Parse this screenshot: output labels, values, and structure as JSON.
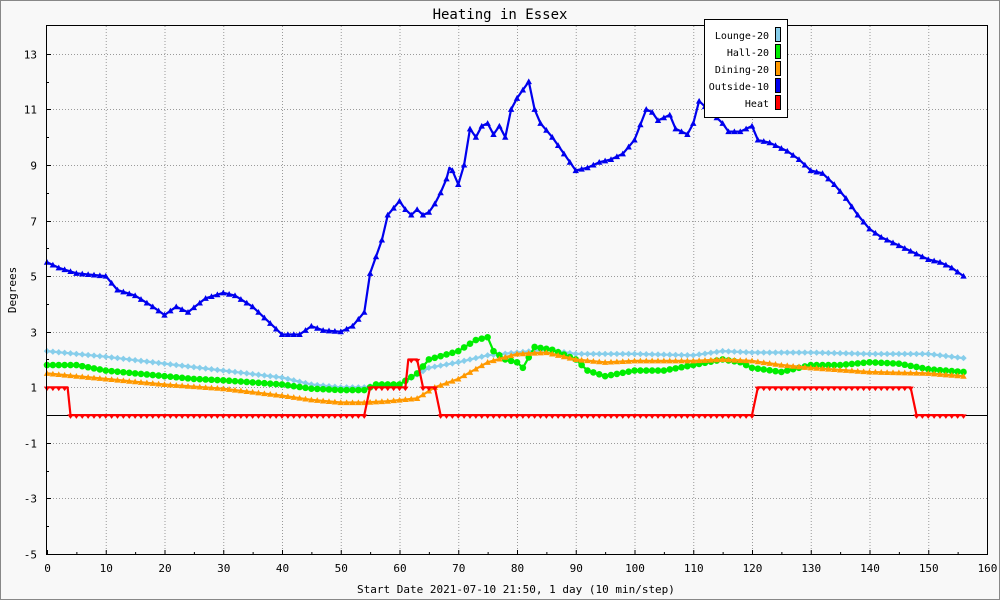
{
  "chart_data": {
    "type": "line",
    "title": "Heating in Essex",
    "xlabel": "Start Date 2021-07-10 21:50, 1 day (10 min/step)",
    "ylabel": "Degrees",
    "xlim": [
      0,
      160
    ],
    "ylim": [
      -5,
      14
    ],
    "x_ticks": [
      0,
      10,
      20,
      30,
      40,
      50,
      60,
      70,
      80,
      90,
      100,
      110,
      120,
      130,
      140,
      150,
      160
    ],
    "y_ticks": [
      -5,
      -3,
      -1,
      1,
      3,
      5,
      7,
      9,
      11,
      13
    ],
    "zero_line": 0,
    "grid": true,
    "legend_position": "top-right",
    "series": [
      {
        "name": "Lounge-20",
        "color": "#87ceeb",
        "marker": "diamond",
        "points": [
          [
            0,
            2.3
          ],
          [
            10,
            2.1
          ],
          [
            20,
            1.85
          ],
          [
            30,
            1.6
          ],
          [
            40,
            1.35
          ],
          [
            45,
            1.1
          ],
          [
            50,
            1.0
          ],
          [
            54,
            1.0
          ],
          [
            57,
            1.1
          ],
          [
            60,
            1.1
          ],
          [
            65,
            1.7
          ],
          [
            70,
            1.9
          ],
          [
            75,
            2.15
          ],
          [
            80,
            2.25
          ],
          [
            85,
            2.35
          ],
          [
            90,
            2.2
          ],
          [
            100,
            2.2
          ],
          [
            110,
            2.15
          ],
          [
            115,
            2.3
          ],
          [
            120,
            2.25
          ],
          [
            130,
            2.25
          ],
          [
            140,
            2.2
          ],
          [
            150,
            2.2
          ],
          [
            156,
            2.05
          ]
        ]
      },
      {
        "name": "Hall-20",
        "color": "#00ee00",
        "marker": "circle",
        "points": [
          [
            0,
            1.8
          ],
          [
            5,
            1.8
          ],
          [
            10,
            1.6
          ],
          [
            20,
            1.4
          ],
          [
            25,
            1.3
          ],
          [
            30,
            1.25
          ],
          [
            40,
            1.1
          ],
          [
            45,
            0.95
          ],
          [
            50,
            0.9
          ],
          [
            54,
            0.9
          ],
          [
            56,
            1.1
          ],
          [
            60,
            1.1
          ],
          [
            63,
            1.5
          ],
          [
            65,
            2.0
          ],
          [
            70,
            2.3
          ],
          [
            73,
            2.7
          ],
          [
            75,
            2.8
          ],
          [
            76,
            2.3
          ],
          [
            78,
            2.0
          ],
          [
            80,
            1.9
          ],
          [
            81,
            1.7
          ],
          [
            83,
            2.45
          ],
          [
            86,
            2.35
          ],
          [
            90,
            2.0
          ],
          [
            92,
            1.6
          ],
          [
            95,
            1.4
          ],
          [
            100,
            1.6
          ],
          [
            105,
            1.6
          ],
          [
            110,
            1.8
          ],
          [
            115,
            2.0
          ],
          [
            118,
            1.9
          ],
          [
            120,
            1.7
          ],
          [
            125,
            1.55
          ],
          [
            130,
            1.8
          ],
          [
            135,
            1.8
          ],
          [
            140,
            1.9
          ],
          [
            145,
            1.85
          ],
          [
            150,
            1.65
          ],
          [
            156,
            1.55
          ]
        ]
      },
      {
        "name": "Dining-20",
        "color": "#ff9900",
        "marker": "triangle",
        "points": [
          [
            0,
            1.5
          ],
          [
            10,
            1.3
          ],
          [
            20,
            1.1
          ],
          [
            30,
            0.95
          ],
          [
            40,
            0.7
          ],
          [
            45,
            0.55
          ],
          [
            50,
            0.45
          ],
          [
            54,
            0.45
          ],
          [
            58,
            0.5
          ],
          [
            63,
            0.6
          ],
          [
            66,
            1.0
          ],
          [
            70,
            1.3
          ],
          [
            75,
            1.9
          ],
          [
            80,
            2.2
          ],
          [
            85,
            2.25
          ],
          [
            90,
            2.0
          ],
          [
            95,
            1.9
          ],
          [
            100,
            1.95
          ],
          [
            110,
            1.95
          ],
          [
            115,
            2.0
          ],
          [
            120,
            1.95
          ],
          [
            125,
            1.8
          ],
          [
            130,
            1.7
          ],
          [
            140,
            1.55
          ],
          [
            150,
            1.5
          ],
          [
            156,
            1.4
          ]
        ]
      },
      {
        "name": "Outside-10",
        "color": "#0000ee",
        "marker": "triangle",
        "points": [
          [
            0,
            5.5
          ],
          [
            2,
            5.3
          ],
          [
            5,
            5.1
          ],
          [
            10,
            5.0
          ],
          [
            12,
            4.5
          ],
          [
            15,
            4.3
          ],
          [
            18,
            3.9
          ],
          [
            20,
            3.6
          ],
          [
            22,
            3.9
          ],
          [
            24,
            3.7
          ],
          [
            27,
            4.2
          ],
          [
            30,
            4.4
          ],
          [
            32,
            4.3
          ],
          [
            35,
            3.9
          ],
          [
            38,
            3.3
          ],
          [
            40,
            2.9
          ],
          [
            43,
            2.9
          ],
          [
            45,
            3.2
          ],
          [
            47,
            3.05
          ],
          [
            50,
            3.0
          ],
          [
            52,
            3.2
          ],
          [
            54,
            3.7
          ],
          [
            55,
            5.1
          ],
          [
            57,
            6.3
          ],
          [
            58,
            7.2
          ],
          [
            60,
            7.7
          ],
          [
            61,
            7.4
          ],
          [
            62,
            7.2
          ],
          [
            63,
            7.4
          ],
          [
            64,
            7.2
          ],
          [
            65,
            7.3
          ],
          [
            66,
            7.6
          ],
          [
            67,
            8.0
          ],
          [
            68,
            8.5
          ],
          [
            68.5,
            8.9
          ],
          [
            69,
            8.8
          ],
          [
            70,
            8.3
          ],
          [
            71,
            9.0
          ],
          [
            72,
            10.3
          ],
          [
            73,
            10.0
          ],
          [
            74,
            10.4
          ],
          [
            75,
            10.5
          ],
          [
            76,
            10.1
          ],
          [
            77,
            10.4
          ],
          [
            78,
            10.0
          ],
          [
            79,
            11.0
          ],
          [
            80,
            11.4
          ],
          [
            81,
            11.7
          ],
          [
            82,
            12.0
          ],
          [
            83,
            11.0
          ],
          [
            84,
            10.5
          ],
          [
            86,
            10.0
          ],
          [
            88,
            9.4
          ],
          [
            90,
            8.8
          ],
          [
            92,
            8.9
          ],
          [
            94,
            9.1
          ],
          [
            96,
            9.2
          ],
          [
            98,
            9.4
          ],
          [
            100,
            9.9
          ],
          [
            102,
            11.0
          ],
          [
            103,
            10.9
          ],
          [
            104,
            10.6
          ],
          [
            106,
            10.8
          ],
          [
            107,
            10.3
          ],
          [
            109,
            10.1
          ],
          [
            110,
            10.5
          ],
          [
            111,
            11.3
          ],
          [
            112,
            11.1
          ],
          [
            113,
            11.0
          ],
          [
            114,
            10.7
          ],
          [
            115,
            10.5
          ],
          [
            116,
            10.2
          ],
          [
            118,
            10.2
          ],
          [
            120,
            10.4
          ],
          [
            121,
            9.9
          ],
          [
            123,
            9.8
          ],
          [
            124,
            9.7
          ],
          [
            126,
            9.5
          ],
          [
            128,
            9.2
          ],
          [
            130,
            8.8
          ],
          [
            132,
            8.7
          ],
          [
            134,
            8.3
          ],
          [
            136,
            7.8
          ],
          [
            138,
            7.2
          ],
          [
            140,
            6.7
          ],
          [
            142,
            6.4
          ],
          [
            144,
            6.2
          ],
          [
            146,
            6.0
          ],
          [
            148,
            5.8
          ],
          [
            150,
            5.6
          ],
          [
            152,
            5.5
          ],
          [
            154,
            5.3
          ],
          [
            156,
            5.0
          ]
        ]
      },
      {
        "name": "Heat",
        "color": "#ff0000",
        "marker": "triangle-down",
        "points": [
          [
            0,
            1
          ],
          [
            3.5,
            1
          ],
          [
            4,
            0
          ],
          [
            54,
            0
          ],
          [
            55,
            1
          ],
          [
            61,
            1
          ],
          [
            61.5,
            2
          ],
          [
            63,
            2
          ],
          [
            64,
            1
          ],
          [
            66,
            1
          ],
          [
            67,
            0
          ],
          [
            120,
            0
          ],
          [
            121,
            1
          ],
          [
            147,
            1
          ],
          [
            148,
            0
          ],
          [
            156,
            0
          ]
        ]
      }
    ]
  }
}
